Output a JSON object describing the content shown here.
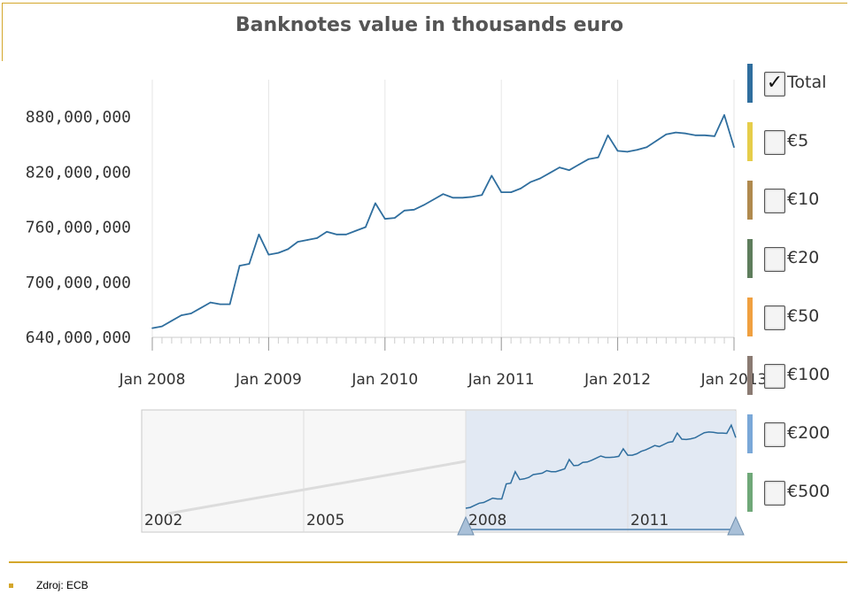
{
  "title": "Banknotes value in thousands euro",
  "footer": {
    "source": "Zdroj: ECB"
  },
  "legend": [
    {
      "label": "Total",
      "color": "#2f6e9e",
      "checked": true
    },
    {
      "label": "€5",
      "color": "#e6cd4a",
      "checked": false
    },
    {
      "label": "€10",
      "color": "#b08a4e",
      "checked": false
    },
    {
      "label": "€20",
      "color": "#5e7d5c",
      "checked": false
    },
    {
      "label": "€50",
      "color": "#f0a040",
      "checked": false
    },
    {
      "label": "€100",
      "color": "#8a7a72",
      "checked": false
    },
    {
      "label": "€200",
      "color": "#7aa8d8",
      "checked": false
    },
    {
      "label": "€500",
      "color": "#6fa878",
      "checked": false
    }
  ],
  "chart_data": {
    "type": "line",
    "title": "Banknotes value in thousands euro",
    "x_range": [
      "2008-01",
      "2013-01"
    ],
    "ylim": [
      640000000,
      880000000
    ],
    "y_ticks": [
      "640,000,000",
      "700,000,000",
      "760,000,000",
      "820,000,000",
      "880,000,000"
    ],
    "x_ticks": [
      "Jan 2008",
      "Jan 2009",
      "Jan 2010",
      "Jan 2011",
      "Jan 2012",
      "Jan 2013"
    ],
    "grid": true,
    "legend_position": "right",
    "series": [
      {
        "name": "Total",
        "color": "#2f6e9e",
        "x": [
          "2008-01",
          "2008-02",
          "2008-03",
          "2008-04",
          "2008-05",
          "2008-06",
          "2008-07",
          "2008-08",
          "2008-09",
          "2008-10",
          "2008-11",
          "2008-12",
          "2009-01",
          "2009-02",
          "2009-03",
          "2009-04",
          "2009-05",
          "2009-06",
          "2009-07",
          "2009-08",
          "2009-09",
          "2009-10",
          "2009-11",
          "2009-12",
          "2010-01",
          "2010-02",
          "2010-03",
          "2010-04",
          "2010-05",
          "2010-06",
          "2010-07",
          "2010-08",
          "2010-09",
          "2010-10",
          "2010-11",
          "2010-12",
          "2011-01",
          "2011-02",
          "2011-03",
          "2011-04",
          "2011-05",
          "2011-06",
          "2011-07",
          "2011-08",
          "2011-09",
          "2011-10",
          "2011-11",
          "2011-12",
          "2012-01",
          "2012-02",
          "2012-03",
          "2012-04",
          "2012-05",
          "2012-06",
          "2012-07",
          "2012-08",
          "2012-09",
          "2012-10",
          "2012-11",
          "2012-12",
          "2013-01"
        ],
        "values": [
          650000000,
          652000000,
          658000000,
          664000000,
          666000000,
          672000000,
          678000000,
          676000000,
          676000000,
          718000000,
          720000000,
          752000000,
          730000000,
          732000000,
          736000000,
          744000000,
          746000000,
          748000000,
          755000000,
          752000000,
          752000000,
          756000000,
          760000000,
          786000000,
          769000000,
          770000000,
          778000000,
          779000000,
          784000000,
          790000000,
          796000000,
          792000000,
          792000000,
          793000000,
          795000000,
          816000000,
          798000000,
          798000000,
          802000000,
          809000000,
          813000000,
          819000000,
          825000000,
          822000000,
          828000000,
          834000000,
          836000000,
          860000000,
          843000000,
          842000000,
          844000000,
          847000000,
          854000000,
          861000000,
          863000000,
          862000000,
          860000000,
          860000000,
          859000000,
          882000000,
          847000000
        ]
      }
    ],
    "navigator": {
      "x_ticks": [
        "2002",
        "2005",
        "2008",
        "2011"
      ],
      "x_range": [
        "2002-01",
        "2013-01"
      ],
      "selected_range": [
        "2008-01",
        "2013-01"
      ]
    }
  }
}
